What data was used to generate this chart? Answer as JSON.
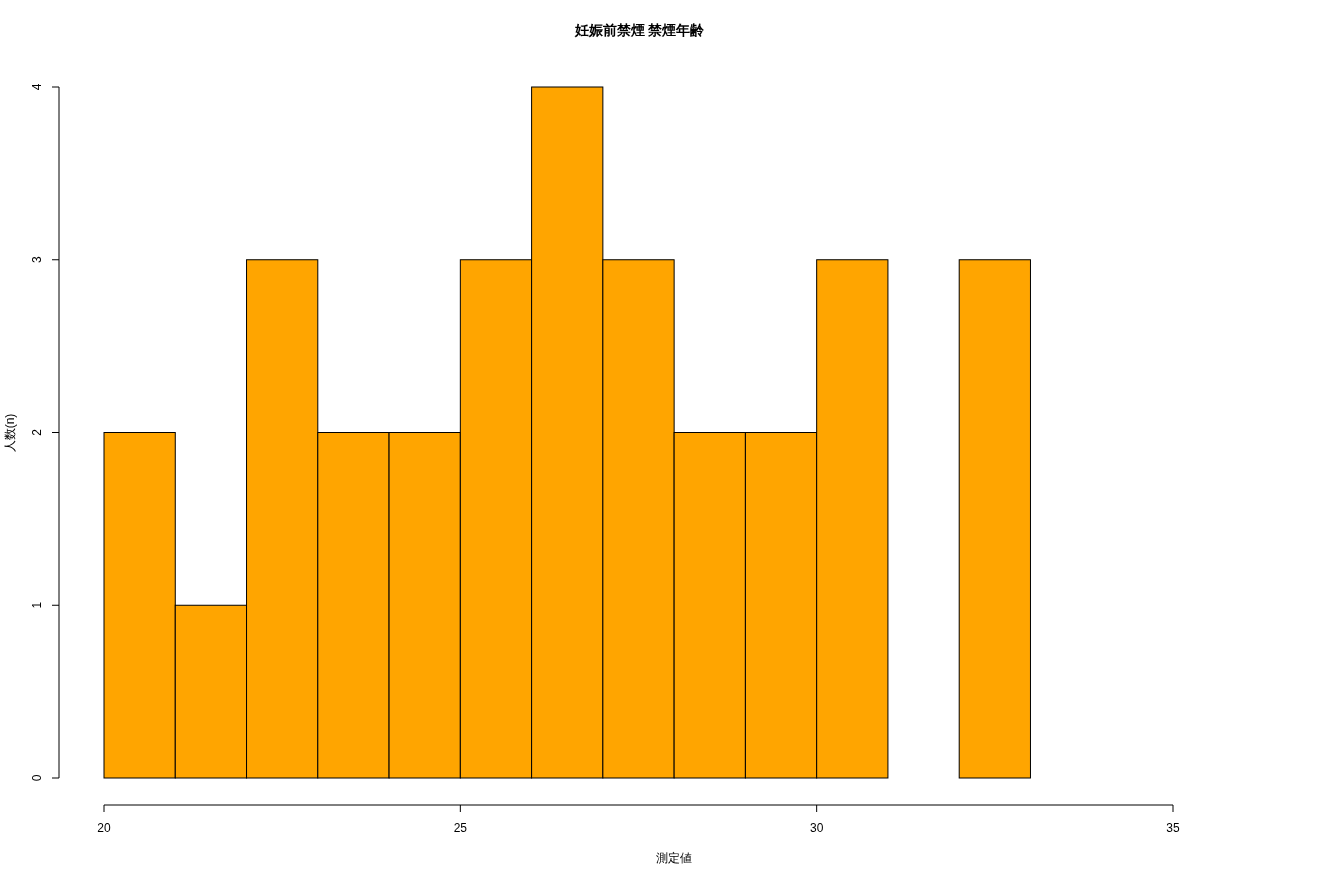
{
  "chart_data": {
    "type": "histogram",
    "title": "妊娠前禁煙 禁煙年齢",
    "xlabel": "測定値",
    "ylabel": "人数(n)",
    "bins": [
      20,
      21,
      22,
      23,
      24,
      25,
      26,
      27,
      28,
      29,
      30,
      31,
      32,
      33
    ],
    "values": [
      2,
      1,
      3,
      2,
      2,
      3,
      4,
      3,
      2,
      2,
      3,
      0,
      3
    ],
    "color": "#ffa500",
    "xlim": [
      20,
      35
    ],
    "xticks": [
      20,
      25,
      30,
      35
    ],
    "ylim": [
      0,
      4
    ],
    "yticks": [
      0,
      1,
      2,
      3,
      4
    ]
  }
}
